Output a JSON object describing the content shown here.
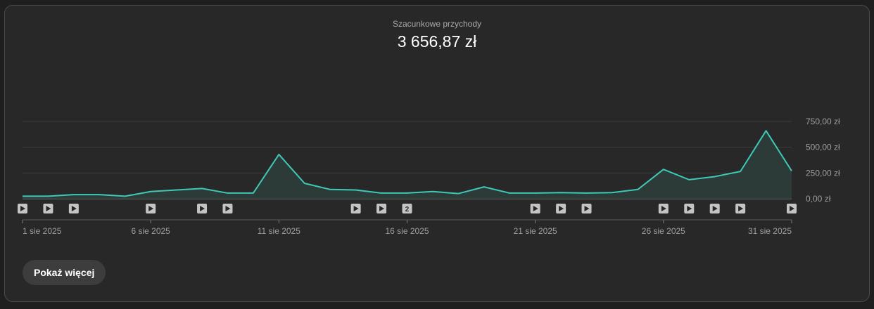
{
  "metric": {
    "label": "Szacunkowe przychody",
    "value": "3 656,87 zł"
  },
  "show_more_label": "Pokaż więcej",
  "colors": {
    "line": "#3ec9b7",
    "fill": "#2c3d3a",
    "grid": "#3c3c3c",
    "axis": "#9e9e9e"
  },
  "chart_data": {
    "type": "area",
    "x": [
      "1 sie",
      "2 sie",
      "3 sie",
      "4 sie",
      "5 sie",
      "6 sie",
      "7 sie",
      "8 sie",
      "9 sie",
      "10 sie",
      "11 sie",
      "12 sie",
      "13 sie",
      "14 sie",
      "15 sie",
      "16 sie",
      "17 sie",
      "18 sie",
      "19 sie",
      "20 sie",
      "21 sie",
      "22 sie",
      "23 sie",
      "24 sie",
      "25 sie",
      "26 sie",
      "27 sie",
      "28 sie",
      "29 sie",
      "30 sie",
      "31 sie"
    ],
    "values": [
      25,
      25,
      40,
      40,
      25,
      70,
      85,
      100,
      55,
      55,
      430,
      150,
      90,
      85,
      55,
      55,
      70,
      50,
      115,
      55,
      55,
      60,
      55,
      60,
      90,
      285,
      185,
      215,
      265,
      660,
      270
    ],
    "ylim": [
      0,
      750
    ],
    "y_ticks": [
      "0,00 zł",
      "250,00 zł",
      "500,00 zł",
      "750,00 zł"
    ],
    "x_tick_labels": [
      {
        "index": 0,
        "label": "1 sie 2025"
      },
      {
        "index": 5,
        "label": "6 sie 2025"
      },
      {
        "index": 10,
        "label": "11 sie 2025"
      },
      {
        "index": 15,
        "label": "16 sie 2025"
      },
      {
        "index": 20,
        "label": "21 sie 2025"
      },
      {
        "index": 25,
        "label": "26 sie 2025"
      },
      {
        "index": 30,
        "label": "31 sie 2025"
      }
    ],
    "video_markers": [
      {
        "index": 0,
        "kind": "play"
      },
      {
        "index": 1,
        "kind": "play"
      },
      {
        "index": 2,
        "kind": "play"
      },
      {
        "index": 5,
        "kind": "play"
      },
      {
        "index": 7,
        "kind": "play"
      },
      {
        "index": 8,
        "kind": "play"
      },
      {
        "index": 13,
        "kind": "play"
      },
      {
        "index": 14,
        "kind": "play"
      },
      {
        "index": 15,
        "kind": "count",
        "label": "2"
      },
      {
        "index": 20,
        "kind": "play"
      },
      {
        "index": 21,
        "kind": "play"
      },
      {
        "index": 22,
        "kind": "play"
      },
      {
        "index": 25,
        "kind": "play"
      },
      {
        "index": 26,
        "kind": "play"
      },
      {
        "index": 27,
        "kind": "play"
      },
      {
        "index": 28,
        "kind": "play"
      },
      {
        "index": 30,
        "kind": "play"
      }
    ]
  }
}
